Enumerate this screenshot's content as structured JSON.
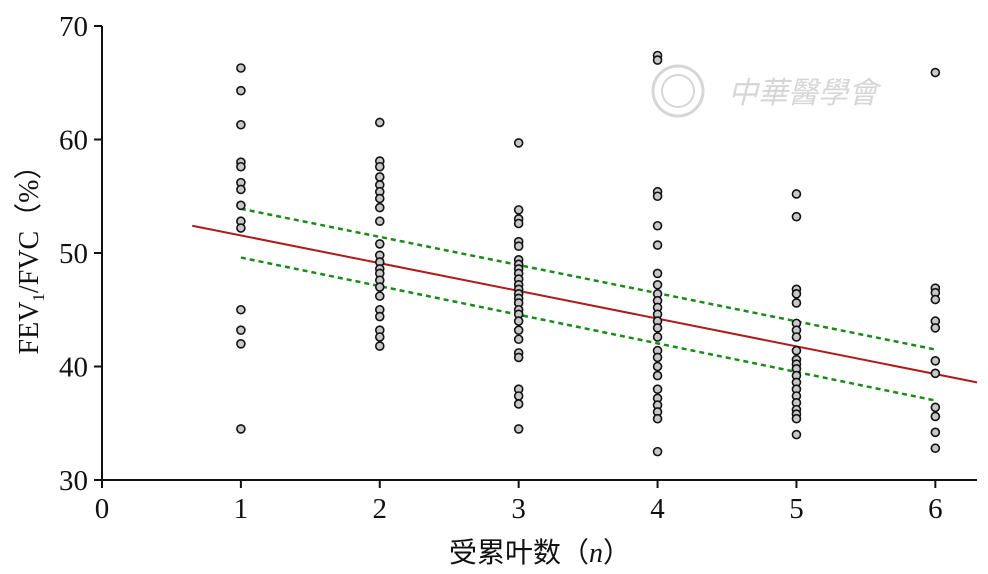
{
  "chart_data": {
    "type": "scatter",
    "xlabel_main": "受累叶数（",
    "xlabel_var": "n",
    "xlabel_end": "）",
    "ylabel_prefix": "FEV",
    "ylabel_sub": "1",
    "ylabel_suffix": "/FVC（%）",
    "xlim": [
      0,
      6.3
    ],
    "ylim": [
      30,
      70
    ],
    "xticks": [
      0,
      1,
      2,
      3,
      4,
      5,
      6
    ],
    "yticks": [
      30,
      40,
      50,
      60,
      70
    ],
    "grid": false,
    "points": [
      [
        1,
        66.3
      ],
      [
        1,
        64.3
      ],
      [
        1,
        61.3
      ],
      [
        1,
        58.0
      ],
      [
        1,
        57.6
      ],
      [
        1,
        56.2
      ],
      [
        1,
        55.6
      ],
      [
        1,
        54.2
      ],
      [
        1,
        52.8
      ],
      [
        1,
        52.2
      ],
      [
        1,
        45.0
      ],
      [
        1,
        43.2
      ],
      [
        1,
        42.0
      ],
      [
        1,
        34.5
      ],
      [
        2,
        61.5
      ],
      [
        2,
        58.1
      ],
      [
        2,
        57.6
      ],
      [
        2,
        56.7
      ],
      [
        2,
        56.0
      ],
      [
        2,
        55.4
      ],
      [
        2,
        54.8
      ],
      [
        2,
        54.0
      ],
      [
        2,
        52.8
      ],
      [
        2,
        50.8
      ],
      [
        2,
        49.8
      ],
      [
        2,
        49.2
      ],
      [
        2,
        48.6
      ],
      [
        2,
        48.2
      ],
      [
        2,
        47.6
      ],
      [
        2,
        47.0
      ],
      [
        2,
        46.2
      ],
      [
        2,
        45.0
      ],
      [
        2,
        44.4
      ],
      [
        2,
        43.2
      ],
      [
        2,
        42.6
      ],
      [
        2,
        41.8
      ],
      [
        3,
        59.7
      ],
      [
        3,
        53.8
      ],
      [
        3,
        53.0
      ],
      [
        3,
        52.6
      ],
      [
        3,
        51.0
      ],
      [
        3,
        50.6
      ],
      [
        3,
        49.4
      ],
      [
        3,
        49.0
      ],
      [
        3,
        48.6
      ],
      [
        3,
        48.2
      ],
      [
        3,
        47.7
      ],
      [
        3,
        47.2
      ],
      [
        3,
        46.8
      ],
      [
        3,
        46.4
      ],
      [
        3,
        46.0
      ],
      [
        3,
        45.6
      ],
      [
        3,
        45.0
      ],
      [
        3,
        44.6
      ],
      [
        3,
        44.0
      ],
      [
        3,
        43.2
      ],
      [
        3,
        42.4
      ],
      [
        3,
        41.2
      ],
      [
        3,
        40.8
      ],
      [
        3,
        38.0
      ],
      [
        3,
        37.4
      ],
      [
        3,
        36.7
      ],
      [
        3,
        34.5
      ],
      [
        4,
        67.4
      ],
      [
        4,
        67.0
      ],
      [
        4,
        55.4
      ],
      [
        4,
        55.0
      ],
      [
        4,
        52.4
      ],
      [
        4,
        50.7
      ],
      [
        4,
        48.2
      ],
      [
        4,
        47.2
      ],
      [
        4,
        46.4
      ],
      [
        4,
        45.8
      ],
      [
        4,
        45.2
      ],
      [
        4,
        44.6
      ],
      [
        4,
        44.0
      ],
      [
        4,
        43.4
      ],
      [
        4,
        42.6
      ],
      [
        4,
        41.4
      ],
      [
        4,
        40.8
      ],
      [
        4,
        40.0
      ],
      [
        4,
        39.2
      ],
      [
        4,
        38.0
      ],
      [
        4,
        37.2
      ],
      [
        4,
        36.6
      ],
      [
        4,
        36.0
      ],
      [
        4,
        35.4
      ],
      [
        4,
        32.5
      ],
      [
        5,
        55.2
      ],
      [
        5,
        53.2
      ],
      [
        5,
        46.8
      ],
      [
        5,
        46.4
      ],
      [
        5,
        45.6
      ],
      [
        5,
        43.8
      ],
      [
        5,
        43.2
      ],
      [
        5,
        42.6
      ],
      [
        5,
        41.4
      ],
      [
        5,
        40.6
      ],
      [
        5,
        40.2
      ],
      [
        5,
        39.8
      ],
      [
        5,
        39.2
      ],
      [
        5,
        38.6
      ],
      [
        5,
        38.0
      ],
      [
        5,
        37.4
      ],
      [
        5,
        36.8
      ],
      [
        5,
        36.2
      ],
      [
        5,
        35.8
      ],
      [
        5,
        35.4
      ],
      [
        5,
        34.0
      ],
      [
        6,
        65.9
      ],
      [
        6,
        46.9
      ],
      [
        6,
        46.5
      ],
      [
        6,
        45.9
      ],
      [
        6,
        44.0
      ],
      [
        6,
        43.4
      ],
      [
        6,
        40.5
      ],
      [
        6,
        39.4
      ],
      [
        6,
        36.4
      ],
      [
        6,
        35.6
      ],
      [
        6,
        34.2
      ],
      [
        6,
        32.8
      ]
    ],
    "fit_line": {
      "x": [
        0.65,
        6.3
      ],
      "y": [
        52.4,
        38.6
      ],
      "color": "#b01a1a"
    },
    "ci_upper": {
      "x": [
        1,
        6
      ],
      "y": [
        53.9,
        41.5
      ],
      "color": "#1a8a1a"
    },
    "ci_lower": {
      "x": [
        1,
        6
      ],
      "y": [
        49.6,
        37.0
      ],
      "color": "#1a8a1a"
    },
    "point_fill": "#c8c8c8",
    "point_stroke": "#111111"
  },
  "watermark": {
    "text": "中華醫學會",
    "color": "#d6d6d6"
  }
}
